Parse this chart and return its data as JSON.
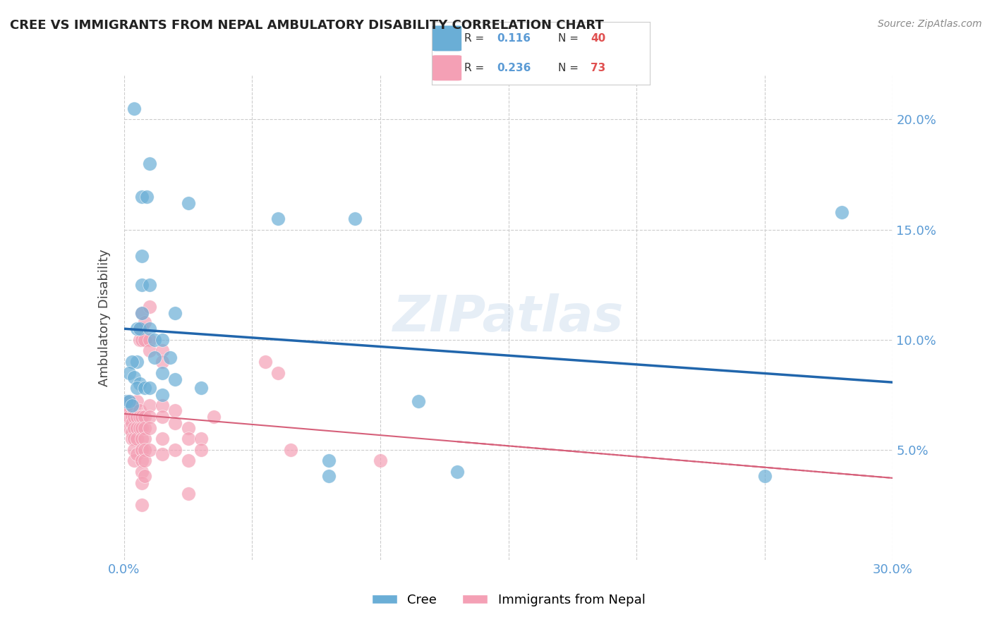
{
  "title": "CREE VS IMMIGRANTS FROM NEPAL AMBULATORY DISABILITY CORRELATION CHART",
  "source": "Source: ZipAtlas.com",
  "ylabel": "Ambulatory Disability",
  "watermark": "ZIPatlas",
  "xlim": [
    0.0,
    0.3
  ],
  "ylim": [
    0.0,
    0.22
  ],
  "legend_blue_r": "0.116",
  "legend_blue_n": "40",
  "legend_pink_r": "0.236",
  "legend_pink_n": "73",
  "cree_color": "#6aaed6",
  "nepal_color": "#f4a0b5",
  "cree_line_color": "#2166ac",
  "nepal_line_color": "#d6607a",
  "background_color": "#ffffff",
  "grid_color": "#cccccc",
  "axis_color": "#5b9bd5",
  "cree_points": [
    [
      0.004,
      0.205
    ],
    [
      0.01,
      0.18
    ],
    [
      0.007,
      0.165
    ],
    [
      0.009,
      0.165
    ],
    [
      0.025,
      0.162
    ],
    [
      0.007,
      0.138
    ],
    [
      0.007,
      0.125
    ],
    [
      0.01,
      0.125
    ],
    [
      0.06,
      0.155
    ],
    [
      0.09,
      0.155
    ],
    [
      0.007,
      0.112
    ],
    [
      0.005,
      0.105
    ],
    [
      0.006,
      0.105
    ],
    [
      0.01,
      0.105
    ],
    [
      0.02,
      0.112
    ],
    [
      0.012,
      0.1
    ],
    [
      0.015,
      0.1
    ],
    [
      0.012,
      0.092
    ],
    [
      0.018,
      0.092
    ],
    [
      0.015,
      0.085
    ],
    [
      0.005,
      0.09
    ],
    [
      0.003,
      0.09
    ],
    [
      0.002,
      0.085
    ],
    [
      0.004,
      0.083
    ],
    [
      0.006,
      0.08
    ],
    [
      0.005,
      0.078
    ],
    [
      0.008,
      0.078
    ],
    [
      0.01,
      0.078
    ],
    [
      0.001,
      0.072
    ],
    [
      0.002,
      0.072
    ],
    [
      0.003,
      0.07
    ],
    [
      0.015,
      0.075
    ],
    [
      0.02,
      0.082
    ],
    [
      0.03,
      0.078
    ],
    [
      0.115,
      0.072
    ],
    [
      0.08,
      0.045
    ],
    [
      0.13,
      0.04
    ],
    [
      0.08,
      0.038
    ],
    [
      0.28,
      0.158
    ],
    [
      0.25,
      0.038
    ]
  ],
  "nepal_points": [
    [
      0.001,
      0.065
    ],
    [
      0.001,
      0.07
    ],
    [
      0.002,
      0.068
    ],
    [
      0.002,
      0.072
    ],
    [
      0.002,
      0.065
    ],
    [
      0.002,
      0.06
    ],
    [
      0.003,
      0.07
    ],
    [
      0.003,
      0.065
    ],
    [
      0.003,
      0.062
    ],
    [
      0.003,
      0.058
    ],
    [
      0.003,
      0.055
    ],
    [
      0.004,
      0.068
    ],
    [
      0.004,
      0.065
    ],
    [
      0.004,
      0.06
    ],
    [
      0.004,
      0.055
    ],
    [
      0.004,
      0.05
    ],
    [
      0.004,
      0.045
    ],
    [
      0.005,
      0.072
    ],
    [
      0.005,
      0.065
    ],
    [
      0.005,
      0.06
    ],
    [
      0.005,
      0.055
    ],
    [
      0.005,
      0.048
    ],
    [
      0.006,
      0.105
    ],
    [
      0.006,
      0.1
    ],
    [
      0.006,
      0.068
    ],
    [
      0.006,
      0.065
    ],
    [
      0.006,
      0.06
    ],
    [
      0.007,
      0.112
    ],
    [
      0.007,
      0.105
    ],
    [
      0.007,
      0.1
    ],
    [
      0.007,
      0.065
    ],
    [
      0.007,
      0.06
    ],
    [
      0.007,
      0.055
    ],
    [
      0.007,
      0.05
    ],
    [
      0.007,
      0.045
    ],
    [
      0.007,
      0.04
    ],
    [
      0.007,
      0.035
    ],
    [
      0.007,
      0.025
    ],
    [
      0.008,
      0.108
    ],
    [
      0.008,
      0.1
    ],
    [
      0.008,
      0.065
    ],
    [
      0.008,
      0.06
    ],
    [
      0.008,
      0.055
    ],
    [
      0.008,
      0.05
    ],
    [
      0.008,
      0.045
    ],
    [
      0.008,
      0.038
    ],
    [
      0.01,
      0.115
    ],
    [
      0.01,
      0.1
    ],
    [
      0.01,
      0.095
    ],
    [
      0.01,
      0.07
    ],
    [
      0.01,
      0.065
    ],
    [
      0.01,
      0.06
    ],
    [
      0.01,
      0.05
    ],
    [
      0.015,
      0.095
    ],
    [
      0.015,
      0.09
    ],
    [
      0.015,
      0.07
    ],
    [
      0.015,
      0.065
    ],
    [
      0.015,
      0.055
    ],
    [
      0.015,
      0.048
    ],
    [
      0.02,
      0.068
    ],
    [
      0.02,
      0.062
    ],
    [
      0.02,
      0.05
    ],
    [
      0.025,
      0.06
    ],
    [
      0.025,
      0.055
    ],
    [
      0.025,
      0.045
    ],
    [
      0.025,
      0.03
    ],
    [
      0.03,
      0.055
    ],
    [
      0.03,
      0.05
    ],
    [
      0.035,
      0.065
    ],
    [
      0.055,
      0.09
    ],
    [
      0.06,
      0.085
    ],
    [
      0.065,
      0.05
    ],
    [
      0.1,
      0.045
    ]
  ]
}
